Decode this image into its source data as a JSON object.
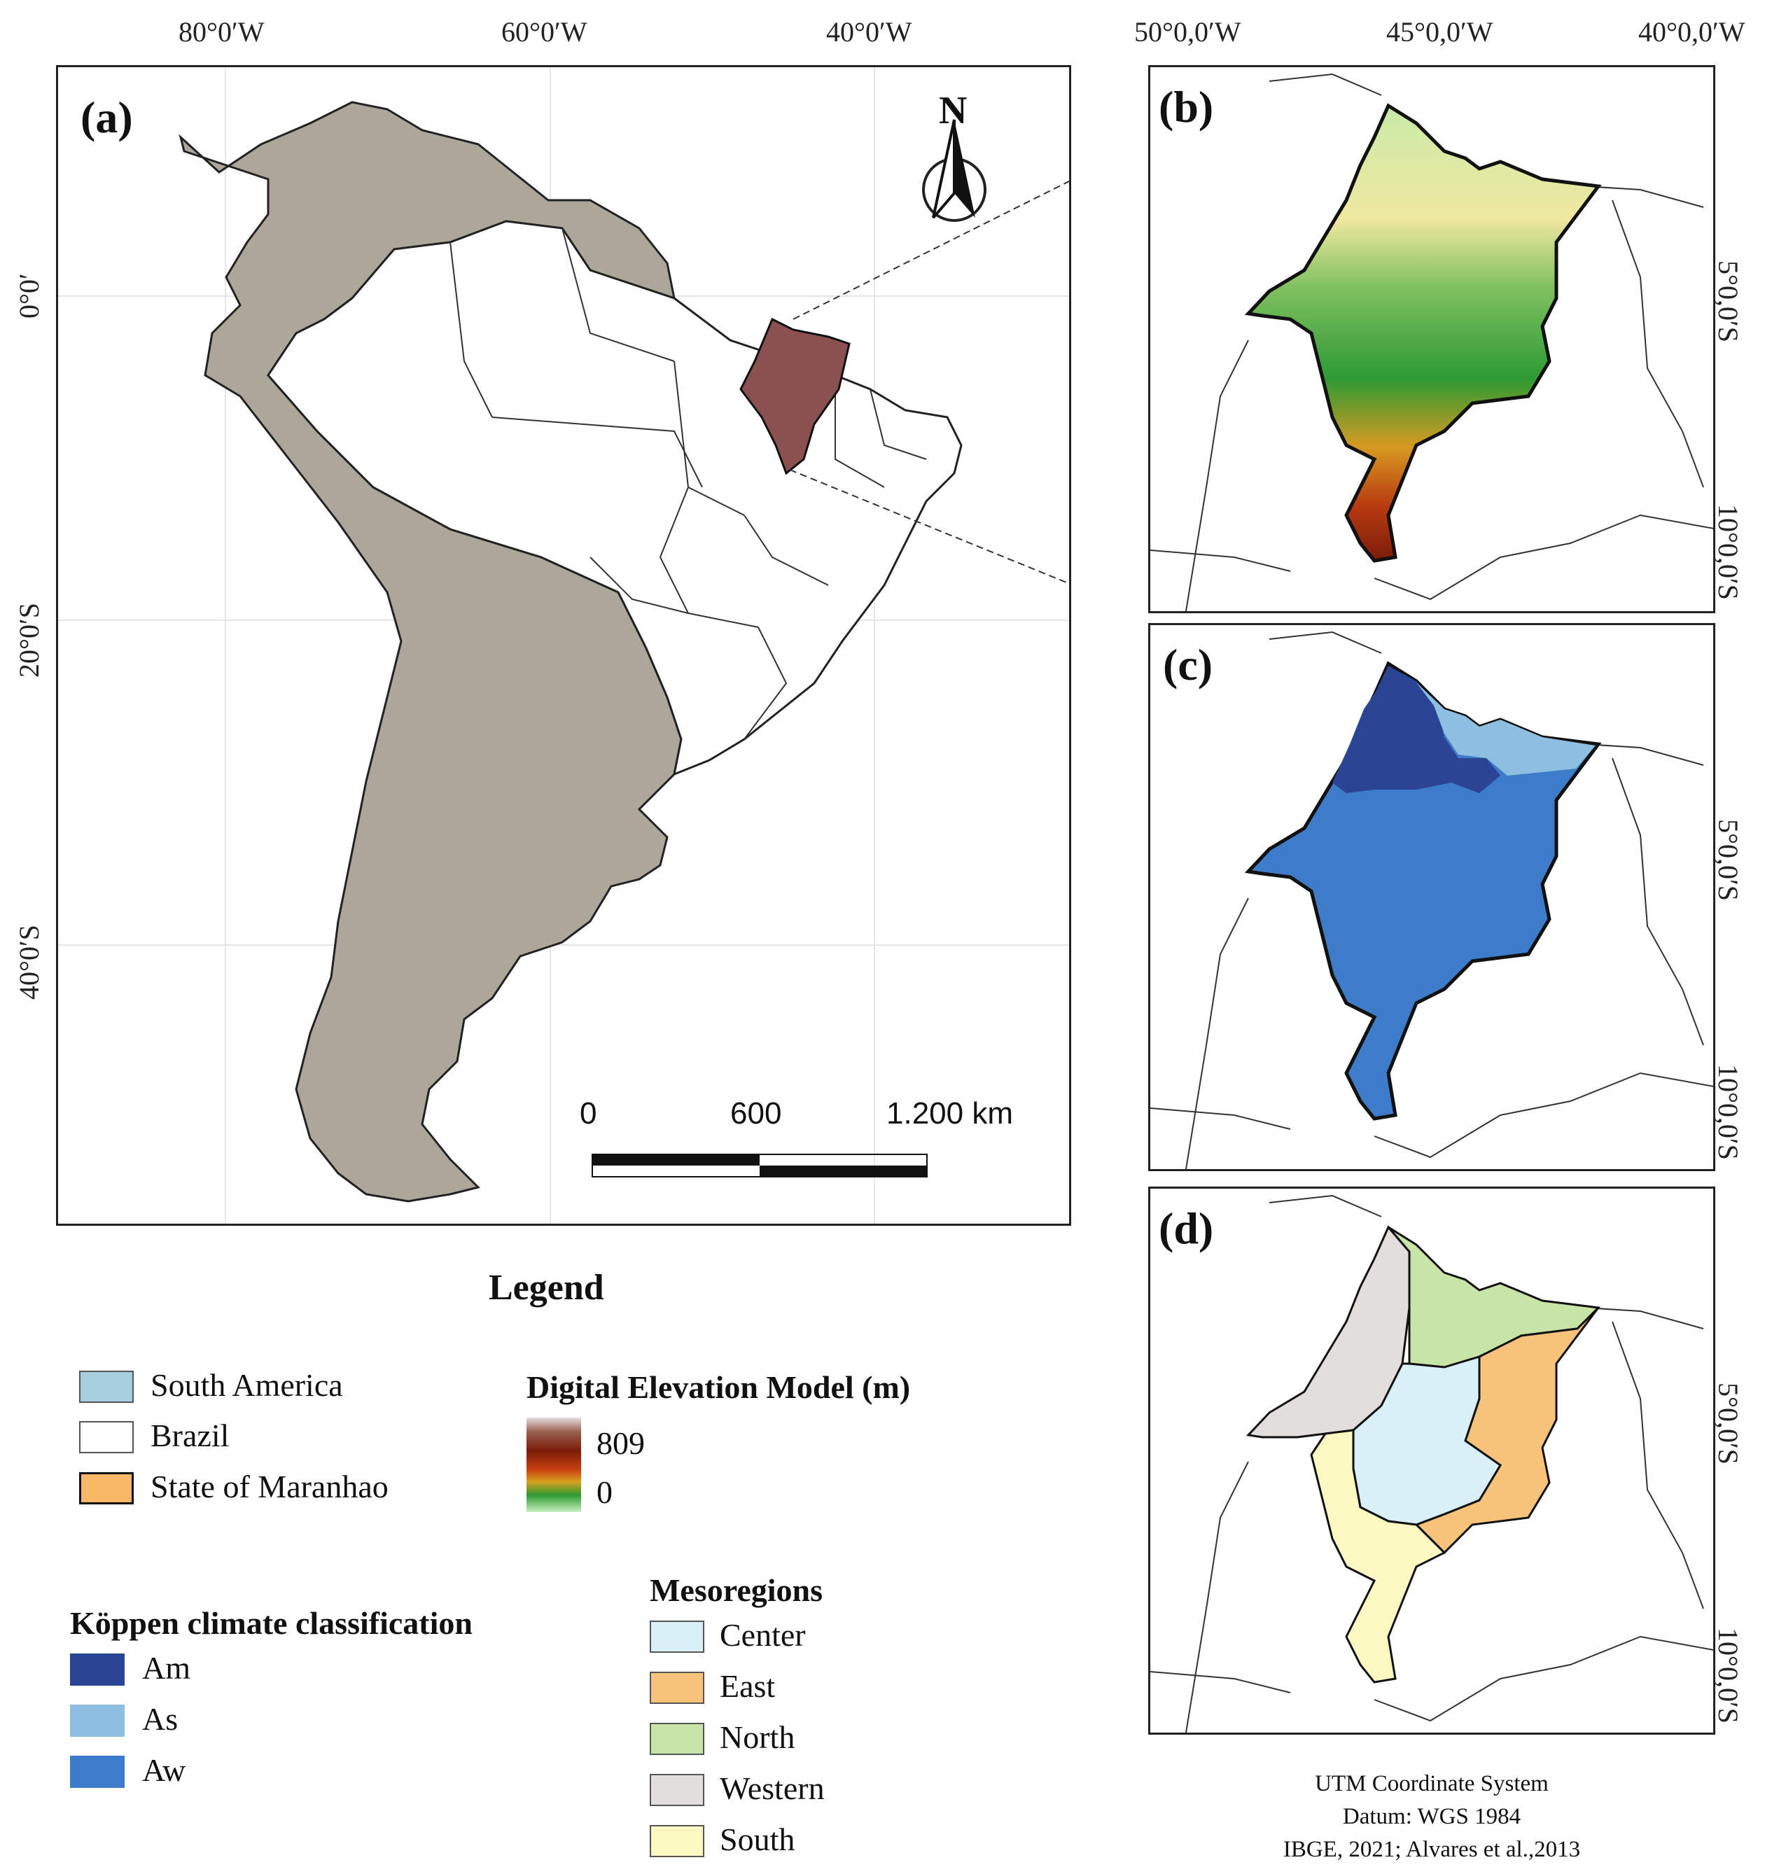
{
  "panel_a": {
    "label": "(a)",
    "lon_ticks": [
      "80°0′W",
      "60°0′W",
      "40°0′W"
    ],
    "lat_ticks": [
      "0°0′",
      "20°0′S",
      "40°0′S"
    ],
    "north_letter": "N",
    "scale": {
      "labels": [
        "0",
        "600",
        "1.200 km"
      ]
    },
    "colors": {
      "south_america": "#aca69b",
      "brazil": "#ffffff",
      "maranhao": "#8b5050"
    }
  },
  "panel_b": {
    "label": "(b)"
  },
  "panel_c": {
    "label": "(c)"
  },
  "panel_d": {
    "label": "(d)"
  },
  "side_lon_ticks": [
    "50°0,0′W",
    "45°0,0′W",
    "40°0,0′W"
  ],
  "side_lat_ticks": [
    "5°0,0′S",
    "10°0,0′S"
  ],
  "legend": {
    "title": "Legend",
    "base_items": [
      {
        "label": "South America",
        "color": "#a8cfe0"
      },
      {
        "label": "Brazil",
        "color": "#ffffff"
      },
      {
        "label": "State of Maranhao",
        "color": "#f8b868"
      }
    ],
    "dem": {
      "title": "Digital Elevation Model (m)",
      "max": "809",
      "min": "0"
    },
    "koppen": {
      "title": "Köppen climate classification",
      "items": [
        {
          "label": "Am",
          "color": "#2b4594"
        },
        {
          "label": "As",
          "color": "#8fbfe0"
        },
        {
          "label": "Aw",
          "color": "#3c7cc8"
        }
      ]
    },
    "meso": {
      "title": "Mesoregions",
      "items": [
        {
          "label": "Center",
          "color": "#d9f0f8"
        },
        {
          "label": "East",
          "color": "#f7c27a"
        },
        {
          "label": "North",
          "color": "#c8e4a6"
        },
        {
          "label": "Western",
          "color": "#e2dedc"
        },
        {
          "label": "South",
          "color": "#fbf8c2"
        }
      ]
    }
  },
  "credits": [
    "UTM Coordinate System",
    "Datum: WGS 1984",
    "IBGE, 2021; Alvares et al.,2013"
  ]
}
